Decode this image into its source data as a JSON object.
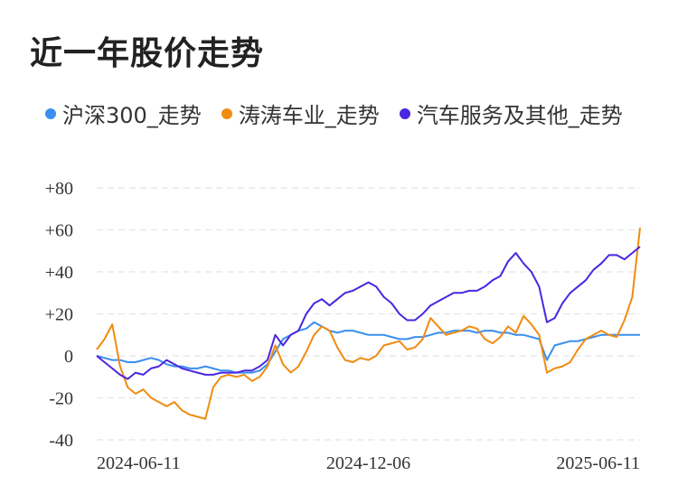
{
  "title": "近一年股价走势",
  "colors": {
    "hs300": "#3a8ff0",
    "taotao": "#f08c10",
    "sector": "#4a26e0",
    "grid": "#e4e4e4"
  },
  "chart_data": {
    "type": "line",
    "title": "近一年股价走势",
    "xlabel": "",
    "ylabel": "",
    "x_tick_labels": [
      "2024-06-11",
      "2024-12-06",
      "2025-06-11"
    ],
    "y_ticks": [
      80,
      60,
      40,
      20,
      0,
      -20,
      -40
    ],
    "y_tick_labels": [
      "+80",
      "+60",
      "+40",
      "+20",
      "0",
      "-20",
      "-40"
    ],
    "ylim": [
      -40,
      80
    ],
    "grid": true,
    "legend_placement": "top-left",
    "series": [
      {
        "name": "沪深300_走势",
        "color_key": "hs300",
        "values": [
          0,
          -1,
          -2,
          -2,
          -3,
          -3,
          -2,
          -1,
          -2,
          -4,
          -5,
          -5,
          -6,
          -6,
          -5,
          -6,
          -7,
          -7,
          -8,
          -8,
          -8,
          -7,
          -4,
          2,
          8,
          10,
          12,
          13,
          16,
          14,
          12,
          11,
          12,
          12,
          11,
          10,
          10,
          10,
          9,
          8,
          8,
          9,
          9,
          10,
          11,
          11,
          12,
          12,
          12,
          11,
          12,
          12,
          11,
          11,
          10,
          10,
          9,
          8,
          -2,
          5,
          6,
          7,
          7,
          8,
          9,
          10,
          10,
          10,
          10,
          10,
          10
        ]
      },
      {
        "name": "涛涛车业_走势",
        "color_key": "taotao",
        "values": [
          3,
          8,
          15,
          -5,
          -15,
          -18,
          -16,
          -20,
          -22,
          -24,
          -22,
          -26,
          -28,
          -29,
          -30,
          -15,
          -10,
          -9,
          -10,
          -9,
          -12,
          -10,
          -5,
          5,
          -4,
          -8,
          -5,
          2,
          10,
          14,
          12,
          4,
          -2,
          -3,
          -1,
          -2,
          0,
          5,
          6,
          7,
          3,
          4,
          8,
          18,
          14,
          10,
          11,
          12,
          14,
          13,
          8,
          6,
          9,
          14,
          11,
          19,
          15,
          10,
          -8,
          -6,
          -5,
          -3,
          3,
          8,
          10,
          12,
          10,
          9,
          17,
          28,
          61
        ]
      },
      {
        "name": "汽车服务及其他_走势",
        "color_key": "sector",
        "values": [
          0,
          -3,
          -6,
          -9,
          -11,
          -8,
          -9,
          -6,
          -5,
          -2,
          -4,
          -6,
          -7,
          -8,
          -9,
          -9,
          -8,
          -8,
          -8,
          -7,
          -7,
          -5,
          -2,
          10,
          5,
          10,
          12,
          20,
          25,
          27,
          24,
          27,
          30,
          31,
          33,
          35,
          33,
          28,
          25,
          20,
          17,
          17,
          20,
          24,
          26,
          28,
          30,
          30,
          31,
          31,
          33,
          36,
          38,
          45,
          49,
          44,
          40,
          33,
          16,
          18,
          25,
          30,
          33,
          36,
          41,
          44,
          48,
          48,
          46,
          49,
          52
        ]
      }
    ]
  }
}
